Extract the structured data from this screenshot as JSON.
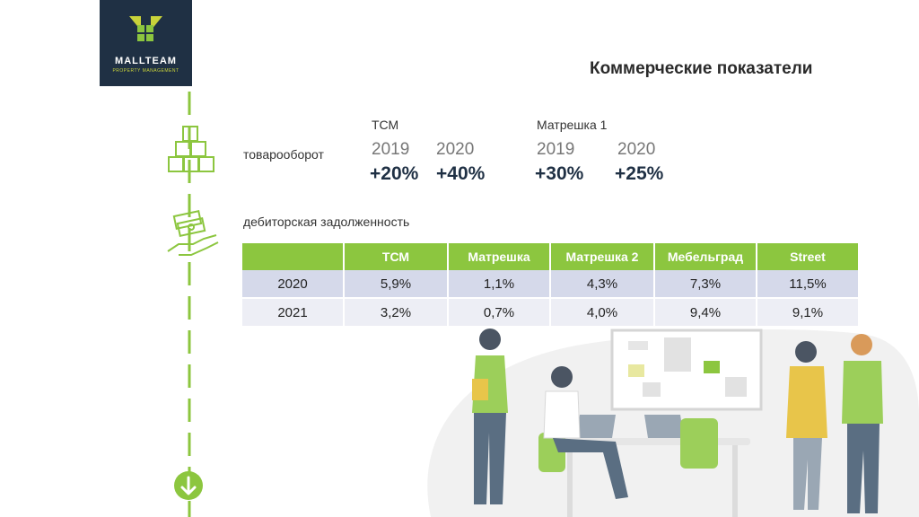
{
  "logo": {
    "brand": "MALLTEAM",
    "tagline": "PROPERTY MANAGEMENT"
  },
  "title": "Коммерческие показатели",
  "turnover": {
    "label": "товарооборот",
    "groups": [
      {
        "name": "ТСМ",
        "years": [
          "2019",
          "2020"
        ],
        "values": [
          "+20%",
          "+40%"
        ]
      },
      {
        "name": "Матрешка 1",
        "years": [
          "2019",
          "2020"
        ],
        "values": [
          "+30%",
          "+25%"
        ]
      }
    ]
  },
  "receivables": {
    "label": "дебиторская задолженность",
    "columns": [
      "",
      "ТСМ",
      "Матрешка",
      "Матрешка 2",
      "Мебельград",
      "Street"
    ],
    "rows": [
      [
        "2020",
        "5,9%",
        "1,1%",
        "4,3%",
        "7,3%",
        "11,5%"
      ],
      [
        "2021",
        "3,2%",
        "0,7%",
        "4,0%",
        "9,4%",
        "9,1%"
      ]
    ]
  },
  "colors": {
    "accent": "#8cc63f",
    "navy": "#1f3044",
    "row1": "#d5d9ea",
    "row2": "#edeef5"
  },
  "icons": [
    "boxes-icon",
    "money-hand-icon",
    "arrow-down-circle-icon"
  ]
}
